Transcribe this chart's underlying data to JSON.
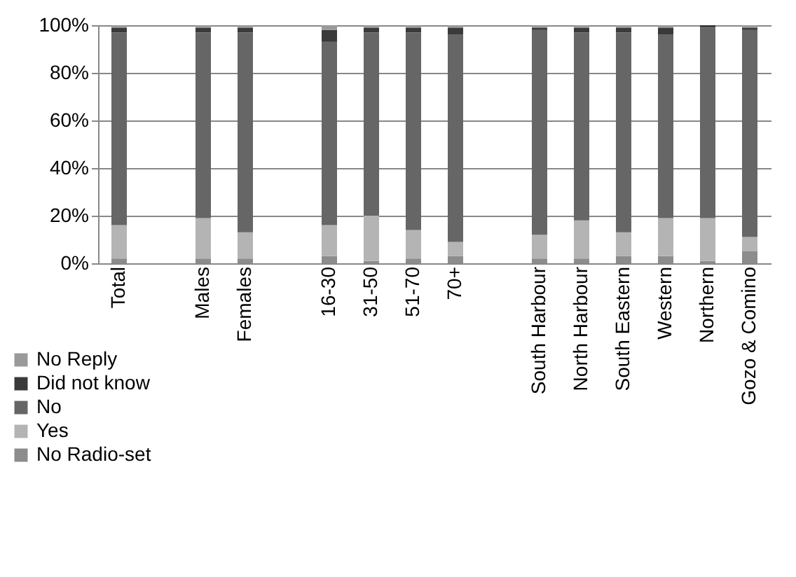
{
  "chart_data": {
    "type": "bar",
    "stacked": true,
    "categories": [
      "Total",
      null,
      "Males",
      "Females",
      null,
      "16-30",
      "31-50",
      "51-70",
      "70+",
      null,
      "South Harbour",
      "North Harbour",
      "South Eastern",
      "Western",
      "Northern",
      "Gozo & Comino"
    ],
    "series": [
      {
        "name": "No Radio-set",
        "color": "#8c8c8c",
        "values": [
          2,
          null,
          2,
          2,
          null,
          3,
          1,
          2,
          3,
          null,
          2,
          2,
          3,
          3,
          1,
          5
        ]
      },
      {
        "name": "Yes",
        "color": "#b4b4b4",
        "values": [
          14,
          null,
          17,
          11,
          null,
          13,
          19,
          12,
          6,
          null,
          10,
          16,
          10,
          16,
          18,
          6
        ]
      },
      {
        "name": "No",
        "color": "#666666",
        "values": [
          81,
          null,
          78,
          84,
          null,
          77,
          77,
          83,
          87,
          null,
          86,
          79,
          84,
          77,
          80,
          87
        ]
      },
      {
        "name": "Did not know",
        "color": "#3a3a3a",
        "values": [
          2,
          null,
          2,
          2,
          null,
          5,
          2,
          2,
          3,
          null,
          1,
          2,
          2,
          3,
          1,
          1
        ]
      },
      {
        "name": "No Reply",
        "color": "#9a9a9a",
        "values": [
          1,
          null,
          1,
          1,
          null,
          2,
          1,
          1,
          1,
          null,
          1,
          1,
          1,
          1,
          0,
          1
        ]
      }
    ],
    "ylim": [
      0,
      100
    ],
    "yticks": [
      {
        "value": 0,
        "label": "0%"
      },
      {
        "value": 20,
        "label": "20%"
      },
      {
        "value": 40,
        "label": "40%"
      },
      {
        "value": 60,
        "label": "60%"
      },
      {
        "value": 80,
        "label": "80%"
      },
      {
        "value": 100,
        "label": "100%"
      }
    ],
    "grid": "y",
    "legend": "bottom left"
  }
}
